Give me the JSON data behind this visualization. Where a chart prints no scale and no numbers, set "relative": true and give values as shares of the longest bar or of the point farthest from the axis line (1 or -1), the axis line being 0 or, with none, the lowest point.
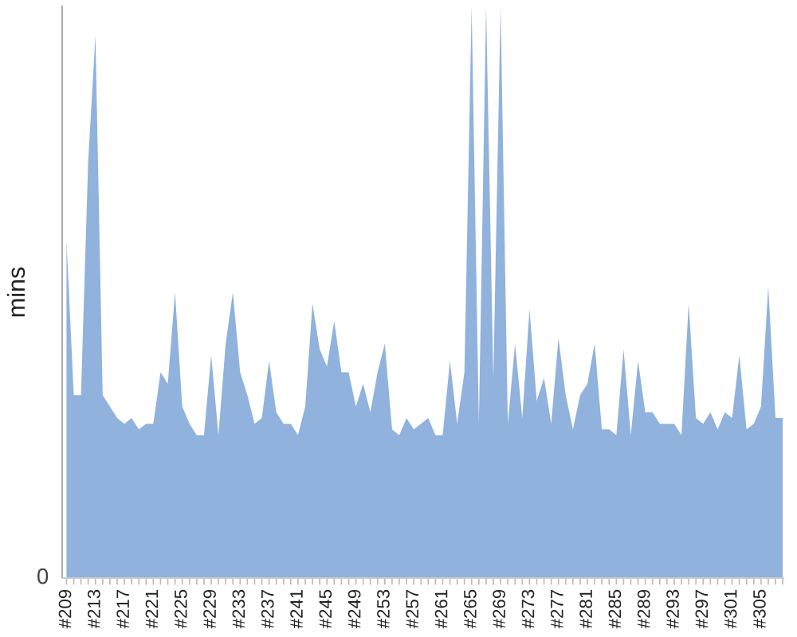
{
  "chart_data": {
    "type": "area",
    "ylabel": "mins",
    "relative": true,
    "color": "#90b2dc",
    "annotations": [
      "0"
    ],
    "categories": [
      "#209",
      null,
      null,
      null,
      "#213",
      null,
      null,
      null,
      "#217",
      null,
      null,
      null,
      "#221",
      null,
      null,
      null,
      "#225",
      null,
      null,
      null,
      "#229",
      null,
      null,
      null,
      "#233",
      null,
      null,
      null,
      "#237",
      null,
      null,
      null,
      "#241",
      null,
      null,
      null,
      "#245",
      null,
      null,
      null,
      "#249",
      null,
      null,
      null,
      "#253",
      null,
      null,
      null,
      "#257",
      null,
      null,
      null,
      "#261",
      null,
      null,
      null,
      "#265",
      null,
      null,
      null,
      "#269",
      null,
      null,
      null,
      "#273",
      null,
      null,
      null,
      "#277",
      null,
      null,
      null,
      "#281",
      null,
      null,
      null,
      "#285",
      null,
      null,
      null,
      "#289",
      null,
      null,
      null,
      "#293",
      null,
      null,
      null,
      "#297",
      null,
      null,
      null,
      "#301",
      null,
      null,
      null,
      "#305",
      null,
      null,
      null
    ],
    "values": [
      0.59,
      0.32,
      0.32,
      0.73,
      0.95,
      0.32,
      0.3,
      0.28,
      0.27,
      0.28,
      0.26,
      0.27,
      0.27,
      0.36,
      0.34,
      0.5,
      0.3,
      0.27,
      0.25,
      0.25,
      0.39,
      0.25,
      0.41,
      0.5,
      0.36,
      0.32,
      0.27,
      0.28,
      0.38,
      0.29,
      0.27,
      0.27,
      0.25,
      0.3,
      0.48,
      0.4,
      0.37,
      0.45,
      0.36,
      0.36,
      0.3,
      0.34,
      0.29,
      0.36,
      0.41,
      0.26,
      0.25,
      0.28,
      0.26,
      0.27,
      0.28,
      0.25,
      0.25,
      0.38,
      0.27,
      0.36,
      1,
      0.27,
      1,
      0.35,
      1,
      0.27,
      0.41,
      0.28,
      0.47,
      0.31,
      0.35,
      0.27,
      0.42,
      0.32,
      0.26,
      0.32,
      0.34,
      0.41,
      0.26,
      0.26,
      0.25,
      0.4,
      0.25,
      0.38,
      0.29,
      0.29,
      0.27,
      0.27,
      0.27,
      0.25,
      0.48,
      0.28,
      0.27,
      0.29,
      0.26,
      0.29,
      0.28,
      0.39,
      0.26,
      0.27,
      0.3,
      0.51,
      0.28,
      0.28
    ]
  }
}
